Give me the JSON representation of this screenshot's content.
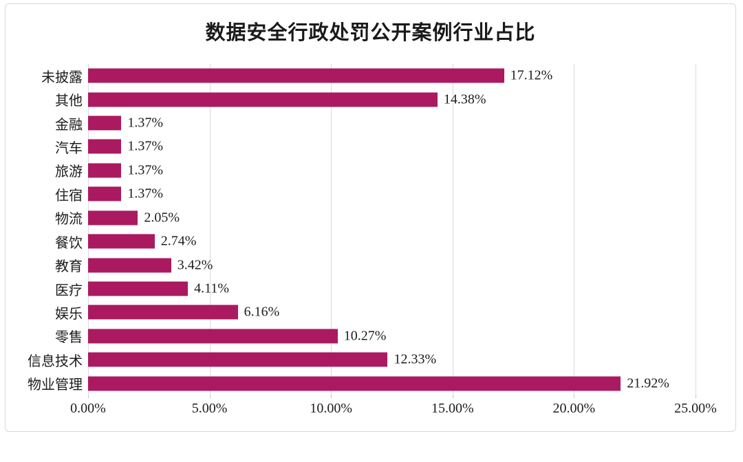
{
  "chart_data": {
    "type": "bar",
    "orientation": "horizontal",
    "title": "数据安全行政处罚公开案例行业占比",
    "categories_top_to_bottom": [
      "未披露",
      "其他",
      "金融",
      "汽车",
      "旅游",
      "住宿",
      "物流",
      "餐饮",
      "教育",
      "医疗",
      "娱乐",
      "零售",
      "信息技术",
      "物业管理"
    ],
    "values": [
      17.12,
      14.38,
      1.37,
      1.37,
      1.37,
      1.37,
      2.05,
      2.74,
      3.42,
      4.11,
      6.16,
      10.27,
      12.33,
      21.92
    ],
    "value_labels": [
      "17.12%",
      "14.38%",
      "1.37%",
      "1.37%",
      "1.37%",
      "1.37%",
      "2.05%",
      "2.74%",
      "3.42%",
      "4.11%",
      "6.16%",
      "10.27%",
      "12.33%",
      "21.92%"
    ],
    "x_tick_labels": [
      "0.00%",
      "5.00%",
      "10.00%",
      "15.00%",
      "20.00%",
      "25.00%"
    ],
    "x_tick_values": [
      0,
      5,
      10,
      15,
      20,
      25
    ],
    "xlim": [
      0,
      25
    ],
    "xlabel": "",
    "ylabel": "",
    "grid": "vertical-only",
    "legend": "none",
    "bar_color": "#ab1a60",
    "gridline_color": "#d9d9d9",
    "frame_border_color": "#d8d8d8",
    "text_color": "#1c1c1c"
  }
}
